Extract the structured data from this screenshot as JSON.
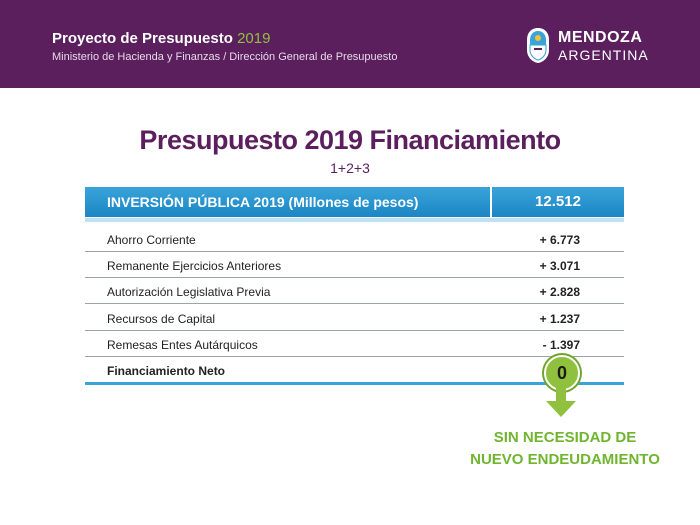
{
  "banner": {
    "title": "Proyecto de Presupuesto",
    "title_year": "2019",
    "subtitle": "Ministerio de Hacienda y Finanzas / Dirección General de Presupuesto",
    "logo_line1": "MENDOZA",
    "logo_line2": "ARGENTINA",
    "logo_icon": "mendoza-shield-icon",
    "color": "#5b1f5e"
  },
  "main": {
    "title": "Presupuesto 2019 Financiamiento",
    "subtitle": "1+2+3"
  },
  "table": {
    "header_label": "INVERSIÓN PÚBLICA 2019 (Millones de pesos)",
    "header_value": "12.512",
    "rows": [
      {
        "label": "Ahorro Corriente",
        "value": "+ 6.773"
      },
      {
        "label": "Remanente Ejercicios Anteriores",
        "value": "+ 3.071"
      },
      {
        "label": "Autorización Legislativa Previa",
        "value": "+ 2.828"
      },
      {
        "label": "Recursos de Capital",
        "value": "+ 1.237"
      },
      {
        "label": "Remesas Entes Autárquicos",
        "value": "- 1.397"
      }
    ],
    "total_label": "Financiamiento Neto",
    "total_value": "0",
    "accent_color": "#1c86c6"
  },
  "conclusion": {
    "line1": "SIN NECESIDAD DE",
    "line2": "NUEVO ENDEUDAMIENTO",
    "arrow_icon": "arrow-down-icon",
    "color": "#8fc13f"
  }
}
